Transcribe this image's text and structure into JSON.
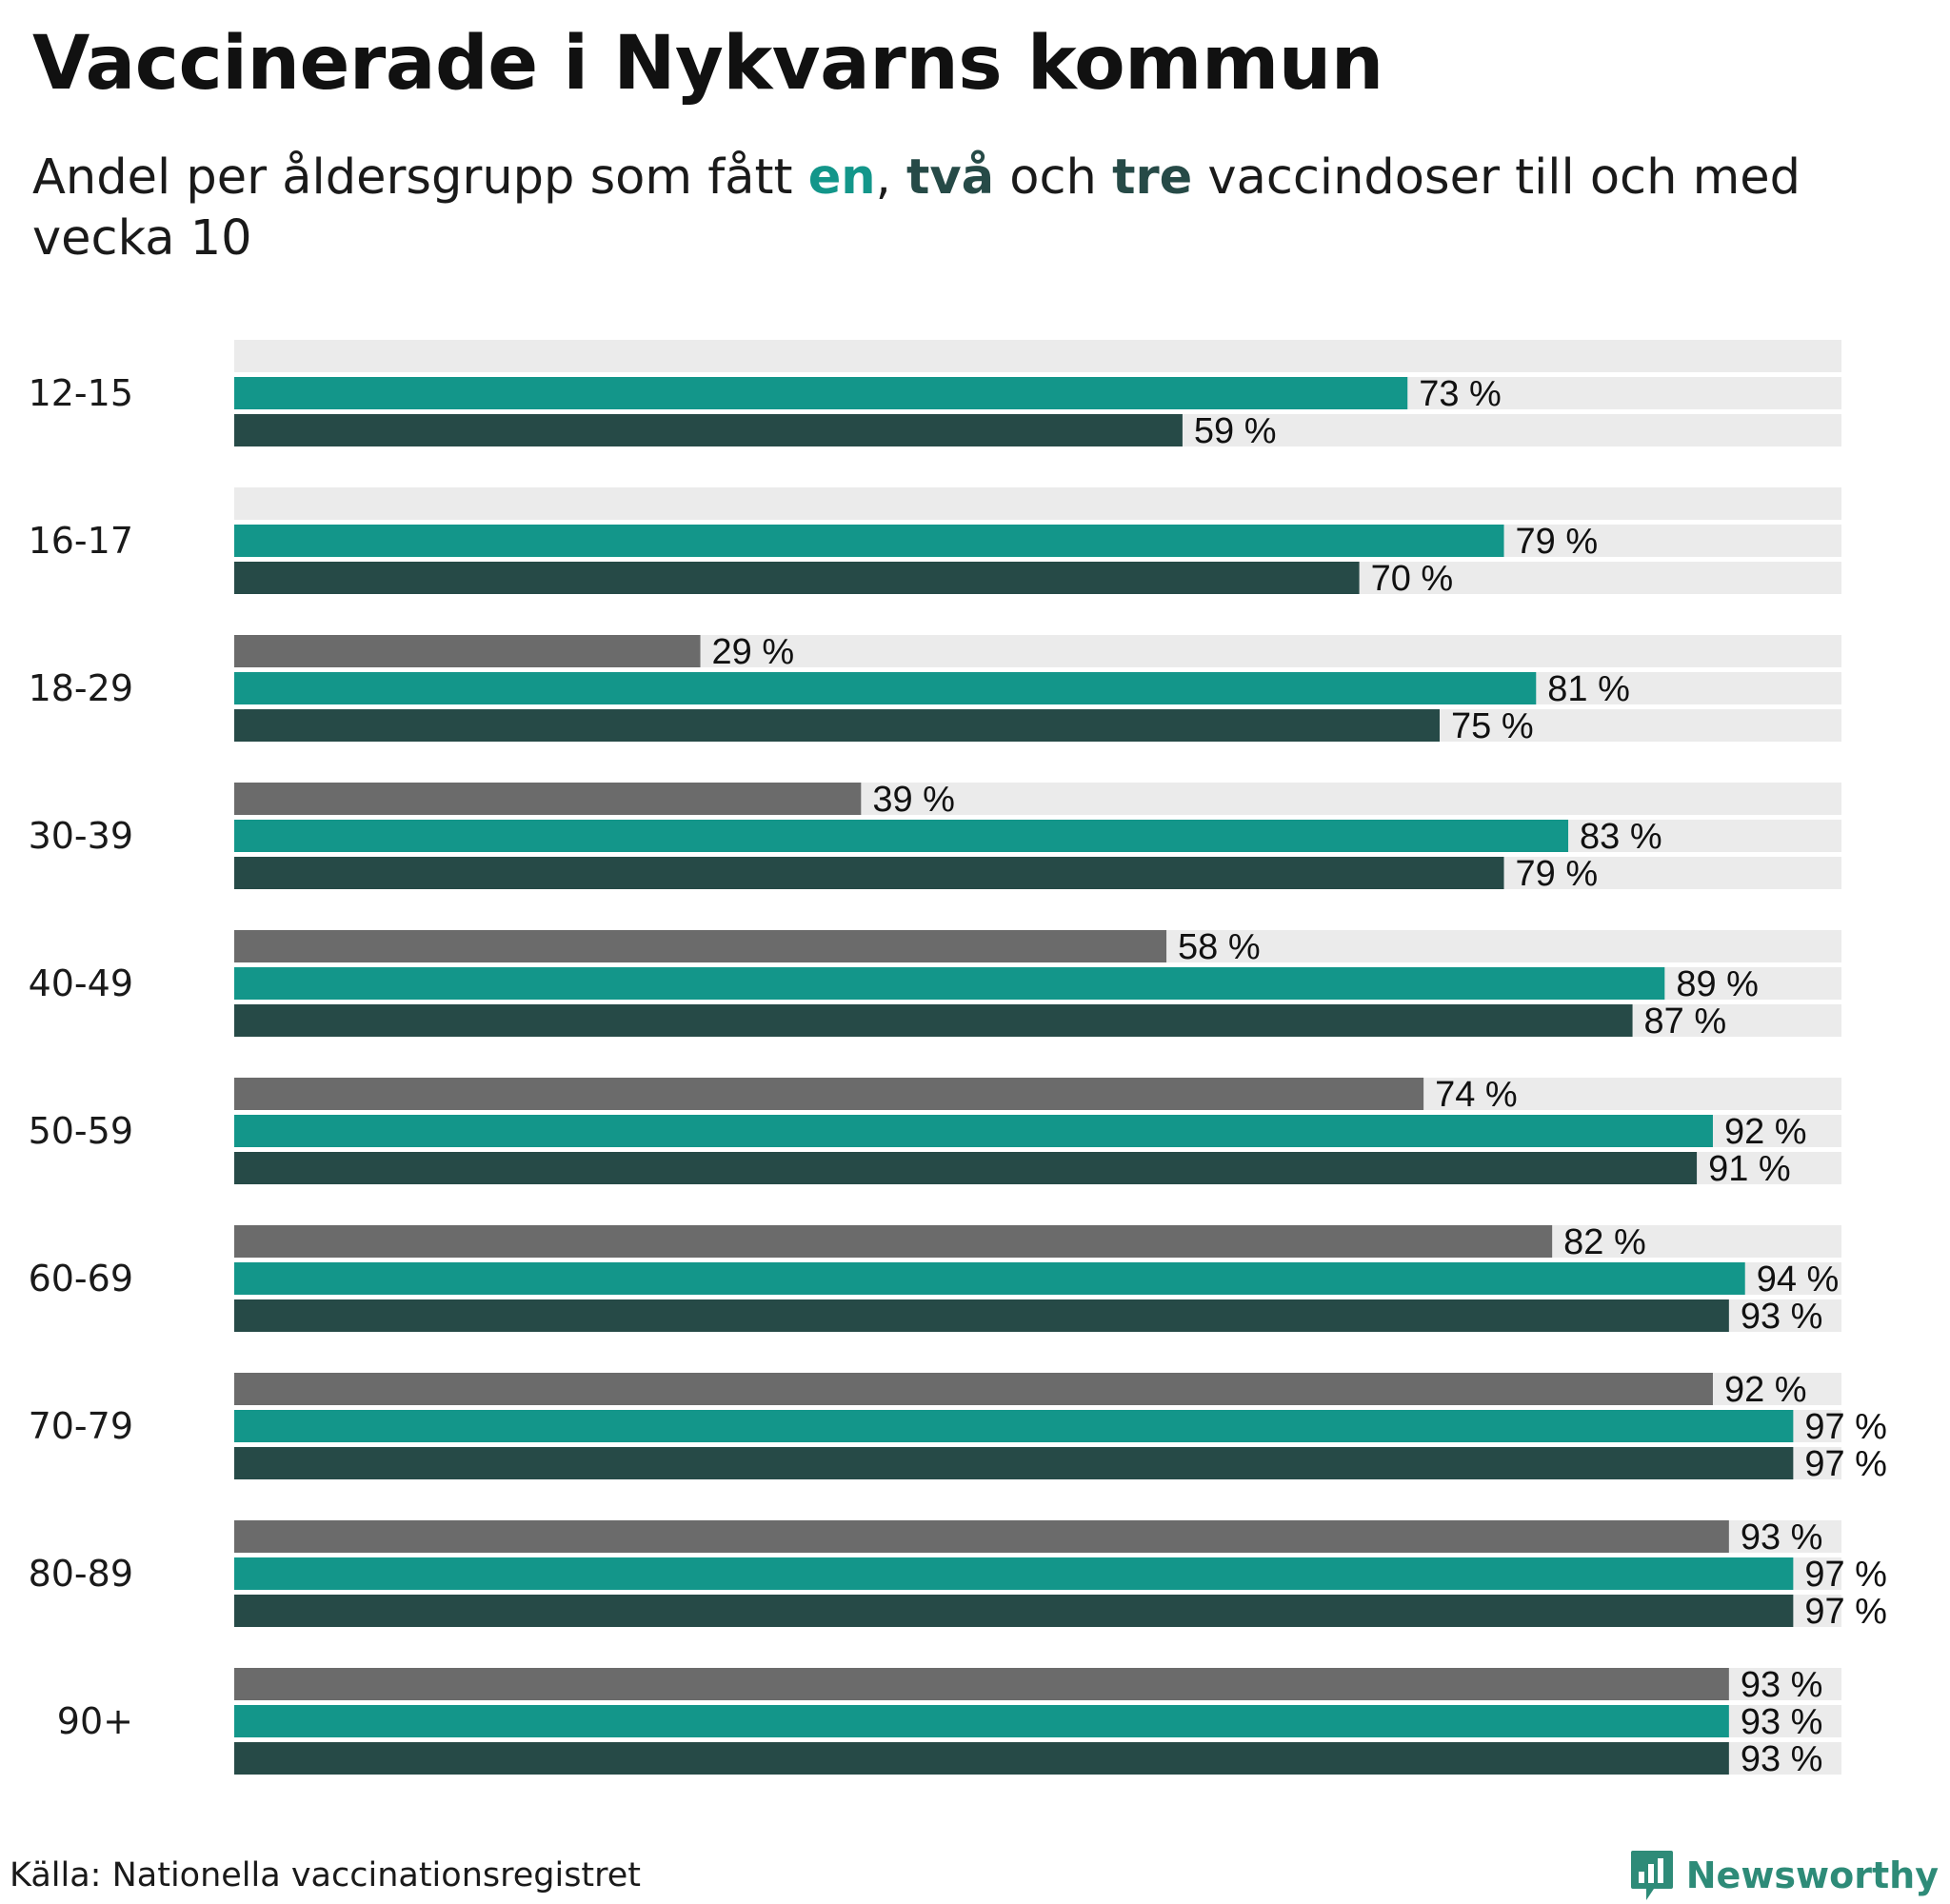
{
  "header": {
    "title": "Vaccinerade i Nykvarns kommun",
    "subtitle_before": "Andel per åldersgrupp som fått ",
    "subtitle_en": "en",
    "subtitle_sep1": ", ",
    "subtitle_tva": "två",
    "subtitle_sep2": " och ",
    "subtitle_tre": "tre",
    "subtitle_after": " vaccindoser till och med vecka 10"
  },
  "footer": {
    "source": "Källa: Nationella vaccinationsregistret",
    "brand": "Newsworthy"
  },
  "colors": {
    "dose_three": "#6b6b6b",
    "dose_one": "#13968a",
    "dose_two": "#264a47",
    "track": "#ebebeb",
    "brand": "#2e8b78"
  },
  "chart_data": {
    "type": "bar",
    "orientation": "horizontal",
    "title": "Vaccinerade i Nykvarns kommun",
    "categories": [
      "12-15",
      "16-17",
      "18-29",
      "30-39",
      "40-49",
      "50-59",
      "60-69",
      "70-79",
      "80-89",
      "90+"
    ],
    "series": [
      {
        "name": "tre",
        "color_key": "dose_three",
        "values": [
          null,
          null,
          29,
          39,
          58,
          74,
          82,
          92,
          93,
          93
        ]
      },
      {
        "name": "en",
        "color_key": "dose_one",
        "values": [
          73,
          79,
          81,
          83,
          89,
          92,
          94,
          97,
          97,
          93
        ]
      },
      {
        "name": "två",
        "color_key": "dose_two",
        "values": [
          59,
          70,
          75,
          79,
          87,
          91,
          93,
          97,
          97,
          93
        ]
      }
    ],
    "value_suffix": " %",
    "xlim": [
      0,
      100
    ],
    "xlabel": "",
    "ylabel": "",
    "grid": false
  }
}
